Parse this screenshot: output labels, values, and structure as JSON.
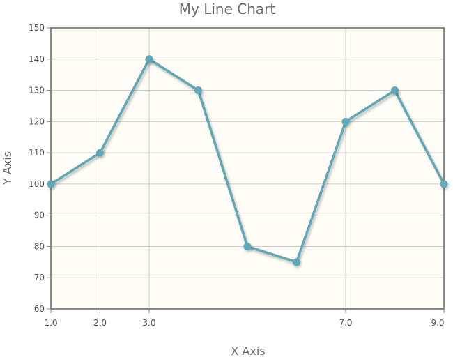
{
  "chart_data": {
    "type": "line",
    "title": "My Line Chart",
    "xlabel": "X Axis",
    "ylabel": "Y Axis",
    "xlim": [
      1.0,
      9.0
    ],
    "ylim": [
      60,
      150
    ],
    "x_ticks": [
      1.0,
      2.0,
      3.0,
      7.0,
      9.0
    ],
    "x_tick_labels": [
      "1.0",
      "2.0",
      "3.0",
      "7.0",
      "9.0"
    ],
    "y_ticks": [
      60,
      70,
      80,
      90,
      100,
      110,
      120,
      130,
      140,
      150
    ],
    "y_tick_labels": [
      "60",
      "70",
      "80",
      "90",
      "100",
      "110",
      "120",
      "130",
      "140",
      "150"
    ],
    "grid": true,
    "series": [
      {
        "x": [
          1,
          2,
          3,
          4,
          5,
          6,
          7,
          8,
          9
        ],
        "y": [
          100,
          110,
          140,
          130,
          80,
          75,
          120,
          130,
          100
        ],
        "color": "#5fa8b7"
      }
    ],
    "plot_background": "#fffdf5",
    "frame_color": "#8a8a8a",
    "grid_color": "#cccccc"
  }
}
